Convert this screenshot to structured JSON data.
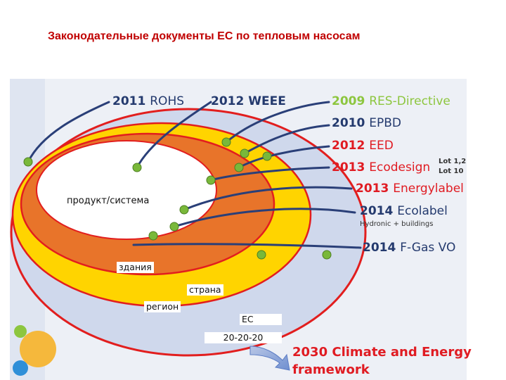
{
  "title": "Законодательные документы ЕС по тепловым насосам",
  "colors": {
    "title": "#c00000",
    "ring_outer_fill": "#cfd8ec",
    "ring_outer_stroke": "#e21e1e",
    "ring_yellow": "#ffd400",
    "ring_orange": "#e8742a",
    "curve": "#2a3f78",
    "dot": "#79b83a",
    "legal_green": "#8dc63f",
    "legal_dark": "#243a6e",
    "legal_red": "#e01b22"
  },
  "legislation": [
    {
      "year": "2011",
      "name": "ROHS",
      "color": "#243a6e"
    },
    {
      "year": "2012",
      "name": "WEEE",
      "color": "#243a6e"
    },
    {
      "year": "2009",
      "name": "RES-Directive",
      "color": "#8dc63f"
    },
    {
      "year": "2010",
      "name": "EPBD",
      "color": "#243a6e"
    },
    {
      "year": "2012",
      "name": "EED",
      "color": "#e01b22"
    },
    {
      "year": "2013",
      "name": "Ecodesign",
      "color": "#e01b22"
    },
    {
      "year": "2013",
      "name": "Energylabel",
      "color": "#e01b22"
    },
    {
      "year": "2014",
      "name": "Ecolabel",
      "color": "#243a6e"
    },
    {
      "year": "2014",
      "name": "F-Gas VO",
      "color": "#243a6e"
    }
  ],
  "lot_note_1": "Lot 1,2",
  "lot_note_2": "Lot 10",
  "ecolabel_sub": "Hydronic + buildings",
  "levels": {
    "product": "продукт/система",
    "buildings": "здания",
    "country": "страна",
    "region": "регион",
    "eu": "ЕС",
    "target": "20-20-20"
  },
  "framework_line1": "2030 Climate and Energy",
  "framework_line2": "framework"
}
